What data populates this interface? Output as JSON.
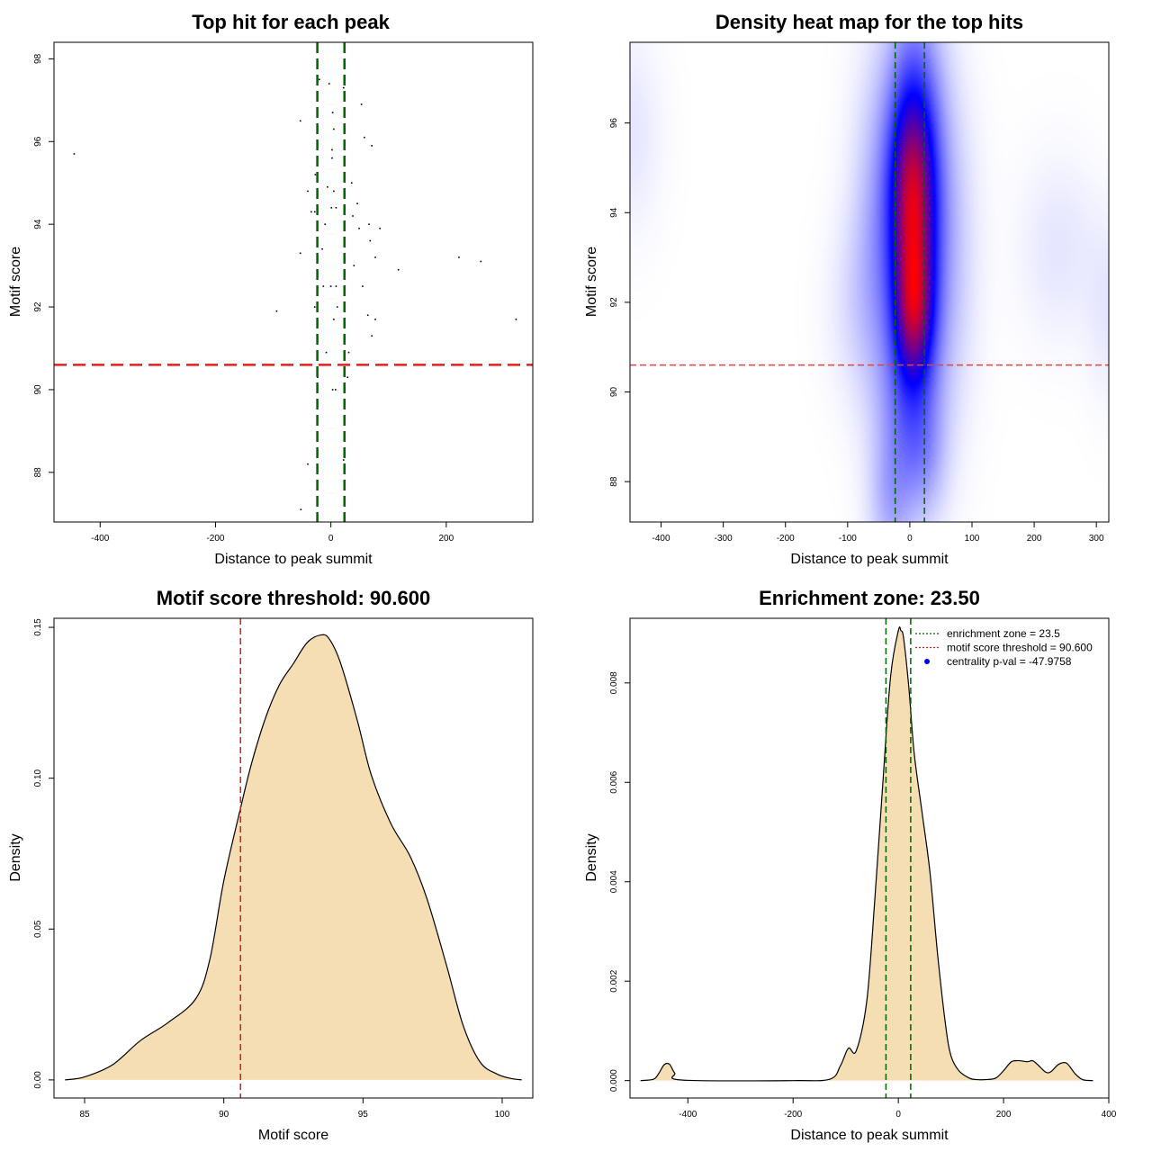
{
  "chart_data": [
    {
      "id": "scatter",
      "type": "scatter",
      "title": "Top hit for each peak",
      "xlabel": "Distance to peak summit",
      "ylabel": "Motif score",
      "xlim": [
        -480,
        350
      ],
      "ylim": [
        86.8,
        98.4
      ],
      "xticks": [
        -400,
        -200,
        0,
        200
      ],
      "yticks": [
        88,
        90,
        92,
        94,
        96,
        98
      ],
      "threshold": 90.6,
      "zone": [
        -23.5,
        23.5
      ],
      "points": [
        [
          -445,
          95.7
        ],
        [
          -20,
          97.5
        ],
        [
          -3,
          97.4
        ],
        [
          22,
          97.3
        ],
        [
          53,
          96.9
        ],
        [
          3,
          96.7
        ],
        [
          -53,
          96.5
        ],
        [
          5,
          96.3
        ],
        [
          58,
          96.1
        ],
        [
          71,
          95.9
        ],
        [
          2,
          95.8
        ],
        [
          2,
          95.6
        ],
        [
          -27,
          95.2
        ],
        [
          36,
          95.0
        ],
        [
          -6,
          94.9
        ],
        [
          5,
          94.8
        ],
        [
          -40,
          94.8
        ],
        [
          46,
          94.5
        ],
        [
          1,
          94.4
        ],
        [
          9,
          94.4
        ],
        [
          -34,
          94.3
        ],
        [
          -28,
          94.3
        ],
        [
          38,
          94.2
        ],
        [
          -10,
          94.0
        ],
        [
          66,
          94.0
        ],
        [
          85,
          93.9
        ],
        [
          49,
          93.9
        ],
        [
          68,
          93.6
        ],
        [
          -15,
          93.4
        ],
        [
          -53,
          93.3
        ],
        [
          77,
          93.2
        ],
        [
          222,
          93.2
        ],
        [
          260,
          93.1
        ],
        [
          40,
          93.0
        ],
        [
          117,
          92.9
        ],
        [
          -13,
          92.5
        ],
        [
          0,
          92.5
        ],
        [
          9,
          92.5
        ],
        [
          55,
          92.5
        ],
        [
          -28,
          92.0
        ],
        [
          11,
          92.0
        ],
        [
          -94,
          91.9
        ],
        [
          64,
          91.8
        ],
        [
          5,
          91.7
        ],
        [
          77,
          91.7
        ],
        [
          321,
          91.7
        ],
        [
          71,
          91.3
        ],
        [
          -8,
          90.9
        ],
        [
          31,
          90.9
        ],
        [
          -23,
          90.3
        ],
        [
          29,
          90.3
        ],
        [
          3,
          90.0
        ],
        [
          8,
          90.0
        ],
        [
          -40,
          88.2
        ],
        [
          22,
          88.3
        ],
        [
          -52,
          87.1
        ]
      ]
    },
    {
      "id": "heatmap",
      "type": "heatmap",
      "title": "Density heat map for the top hits",
      "xlabel": "Distance to peak summit",
      "ylabel": "Motif score",
      "xlim": [
        -450,
        320
      ],
      "ylim": [
        87.1,
        97.8
      ],
      "xticks": [
        -400,
        -300,
        -200,
        -100,
        0,
        100,
        200,
        300
      ],
      "yticks": [
        88,
        90,
        92,
        94,
        96
      ],
      "threshold": 90.6,
      "zone": [
        -23.5,
        23.5
      ],
      "colors": [
        "#ffffff",
        "#0000ff",
        "#ff0000"
      ],
      "blobs": [
        {
          "x": 5,
          "y": 94.2,
          "sx": 24,
          "sy": 1.5,
          "w": 1.0
        },
        {
          "x": 7,
          "y": 91.8,
          "sx": 22,
          "sy": 1.1,
          "w": 0.95
        },
        {
          "x": 8,
          "y": 96.3,
          "sx": 30,
          "sy": 1.8,
          "w": 0.45
        },
        {
          "x": 35,
          "y": 93.2,
          "sx": 40,
          "sy": 2.6,
          "w": 0.4
        },
        {
          "x": -40,
          "y": 93.5,
          "sx": 34,
          "sy": 2.6,
          "w": 0.35
        },
        {
          "x": 0,
          "y": 89.6,
          "sx": 32,
          "sy": 1.3,
          "w": 0.35
        },
        {
          "x": -30,
          "y": 87.5,
          "sx": 25,
          "sy": 1.1,
          "w": 0.25
        },
        {
          "x": 25,
          "y": 88.4,
          "sx": 25,
          "sy": 1.0,
          "w": 0.18
        },
        {
          "x": -85,
          "y": 91.9,
          "sx": 35,
          "sy": 1.4,
          "w": 0.09
        },
        {
          "x": 240,
          "y": 93.2,
          "sx": 45,
          "sy": 1.4,
          "w": 0.09
        },
        {
          "x": -450,
          "y": 95.8,
          "sx": 35,
          "sy": 1.5,
          "w": 0.09
        },
        {
          "x": 320,
          "y": 91.8,
          "sx": 25,
          "sy": 1.4,
          "w": 0.08
        }
      ]
    },
    {
      "id": "scoredens",
      "type": "area",
      "title": "Motif score threshold: 90.600",
      "xlabel": "Motif score",
      "ylabel": "Density",
      "xlim": [
        83.9,
        101.1
      ],
      "ylim": [
        -0.006,
        0.153
      ],
      "xticks": [
        85,
        90,
        95,
        100
      ],
      "yticks": [
        0,
        0.05,
        0.1,
        0.15
      ],
      "ytick_labels": [
        "0.00",
        "0.05",
        "0.10",
        "0.15"
      ],
      "threshold": 90.6,
      "fill": "#f5deb3",
      "x": [
        84.3,
        85.0,
        86.0,
        87.0,
        88.0,
        89.0,
        89.5,
        90.0,
        90.6,
        91.0,
        91.5,
        92.0,
        92.5,
        93.0,
        93.5,
        93.8,
        94.2,
        94.8,
        95.3,
        96.0,
        96.7,
        97.3,
        98.0,
        98.6,
        99.2,
        99.8,
        100.3,
        100.7
      ],
      "y": [
        0.0,
        0.001,
        0.005,
        0.013,
        0.019,
        0.027,
        0.04,
        0.066,
        0.09,
        0.105,
        0.12,
        0.131,
        0.138,
        0.145,
        0.1475,
        0.146,
        0.138,
        0.119,
        0.101,
        0.085,
        0.074,
        0.06,
        0.038,
        0.018,
        0.006,
        0.002,
        0.0005,
        0.0
      ]
    },
    {
      "id": "distdens",
      "type": "area",
      "title": "Enrichment zone: 23.50",
      "xlabel": "Distance to peak summit",
      "ylabel": "Density",
      "xlim": [
        -510,
        400
      ],
      "ylim": [
        -0.00035,
        0.0093
      ],
      "xticks": [
        -400,
        -200,
        0,
        200,
        400
      ],
      "yticks": [
        0,
        0.002,
        0.004,
        0.006,
        0.008
      ],
      "ytick_labels": [
        "0.000",
        "0.002",
        "0.004",
        "0.006",
        "0.008"
      ],
      "zone": [
        -23.5,
        23.5
      ],
      "fill": "#f5deb3",
      "legend": [
        {
          "label": "enrichment zone = 23.5",
          "kind": "line",
          "color": "#006400"
        },
        {
          "label": "motif score threshold = 90.600",
          "kind": "line",
          "color": "#cc2222"
        },
        {
          "label": "centrality p-val = -47.9758",
          "kind": "point",
          "color": "#0000ff"
        }
      ],
      "x": [
        -490,
        -465,
        -455,
        -445,
        -435,
        -425,
        -410,
        -200,
        -130,
        -110,
        -95,
        -80,
        -60,
        -45,
        -30,
        -15,
        0,
        5,
        10,
        20,
        30,
        45,
        60,
        75,
        90,
        100,
        115,
        135,
        150,
        165,
        185,
        200,
        215,
        230,
        245,
        255,
        265,
        280,
        290,
        305,
        320,
        335,
        350,
        370
      ],
      "y": [
        0.0,
        3e-05,
        0.00015,
        0.00032,
        0.00033,
        0.00015,
        1e-05,
        0.0,
        3e-05,
        0.0003,
        0.00065,
        0.0006,
        0.0016,
        0.0036,
        0.0059,
        0.0081,
        0.00905,
        0.00905,
        0.0089,
        0.0079,
        0.0066,
        0.0054,
        0.0042,
        0.0025,
        0.0011,
        0.0005,
        0.0002,
        5e-05,
        2e-05,
        2e-05,
        5e-05,
        0.0002,
        0.00038,
        0.0004,
        0.00038,
        0.0004,
        0.00032,
        0.00017,
        0.00018,
        0.00033,
        0.00035,
        0.00015,
        2e-05,
        0.0
      ]
    }
  ]
}
